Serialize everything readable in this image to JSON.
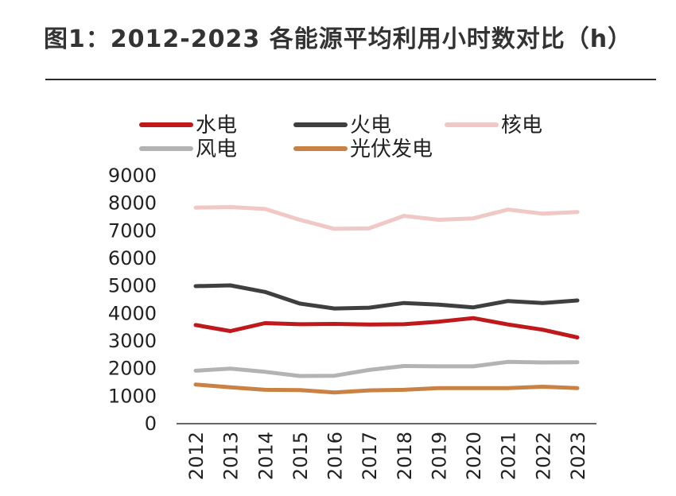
{
  "chart_data": {
    "type": "line",
    "title": "图1：2012-2023 各能源平均利用小时数对比（h）",
    "categories": [
      "2012",
      "2013",
      "2014",
      "2015",
      "2016",
      "2017",
      "2018",
      "2019",
      "2020",
      "2021",
      "2022",
      "2023"
    ],
    "ylim": [
      0,
      9000
    ],
    "yticks": [
      0,
      1000,
      2000,
      3000,
      4000,
      5000,
      6000,
      7000,
      8000,
      9000
    ],
    "grid": false,
    "legend_position": "top",
    "series": [
      {
        "name": "水电",
        "color": "#c0191c",
        "values": [
          3580,
          3360,
          3650,
          3610,
          3620,
          3600,
          3610,
          3700,
          3830,
          3600,
          3410,
          3130
        ]
      },
      {
        "name": "火电",
        "color": "#3d3f41",
        "values": [
          4990,
          5020,
          4780,
          4360,
          4180,
          4210,
          4380,
          4320,
          4220,
          4450,
          4380,
          4470
        ]
      },
      {
        "name": "核电",
        "color": "#f0c8c5",
        "values": [
          7840,
          7860,
          7790,
          7400,
          7070,
          7090,
          7540,
          7400,
          7450,
          7770,
          7620,
          7680
        ]
      },
      {
        "name": "风电",
        "color": "#b3b3b3",
        "values": [
          1920,
          2000,
          1880,
          1730,
          1740,
          1950,
          2090,
          2080,
          2080,
          2240,
          2220,
          2230
        ]
      },
      {
        "name": "光伏发电",
        "color": "#c98244",
        "values": [
          1420,
          1320,
          1230,
          1220,
          1130,
          1210,
          1230,
          1290,
          1290,
          1290,
          1340,
          1290
        ]
      }
    ]
  }
}
